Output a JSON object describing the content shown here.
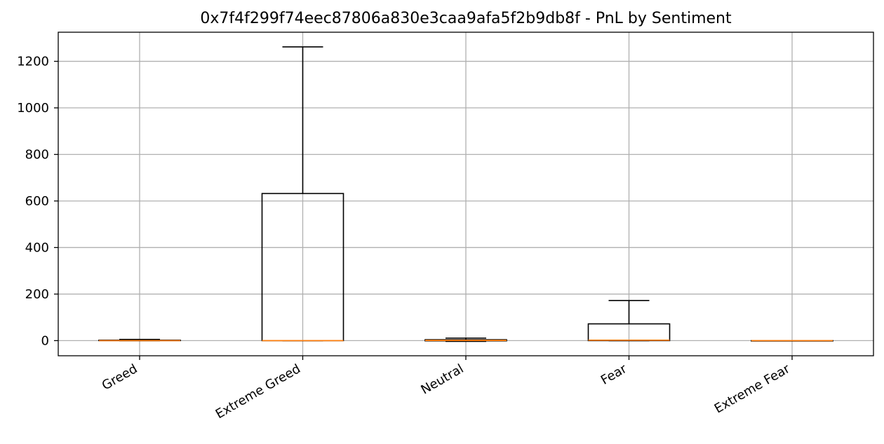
{
  "chart_data": {
    "type": "box",
    "title": "0x7f4f299f74eec87806a830e3caa9afa5f2b9db8f - PnL by Sentiment",
    "xlabel": "",
    "ylabel": "",
    "categories": [
      "Greed",
      "Extreme Greed",
      "Neutral",
      "Fear",
      "Extreme Fear"
    ],
    "boxes": [
      {
        "category": "Greed",
        "whisker_low": 0,
        "q1": 0,
        "median": 0,
        "q3": 2,
        "whisker_high": 5
      },
      {
        "category": "Extreme Greed",
        "whisker_low": 0,
        "q1": 0,
        "median": 0,
        "q3": 632,
        "whisker_high": 1262
      },
      {
        "category": "Neutral",
        "whisker_low": -3,
        "q1": -1,
        "median": 1,
        "q3": 4,
        "whisker_high": 11
      },
      {
        "category": "Fear",
        "whisker_low": 0,
        "q1": 0,
        "median": 2,
        "q3": 72,
        "whisker_high": 172
      },
      {
        "category": "Extreme Fear",
        "whisker_low": 0,
        "q1": 0,
        "median": 0,
        "q3": 0,
        "whisker_high": 0
      }
    ],
    "yticks": [
      0,
      200,
      400,
      600,
      800,
      1000,
      1200
    ],
    "ylim": [
      -65,
      1325
    ],
    "grid": true,
    "colors": {
      "box": "#000000",
      "median": "#ff7f0e",
      "grid": "#b0b0b0"
    }
  }
}
